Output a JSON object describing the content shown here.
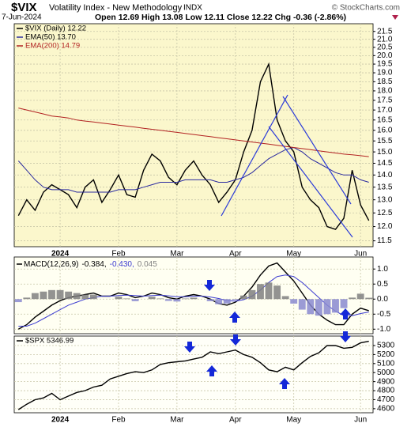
{
  "header": {
    "symbol": "$VIX",
    "name": "Volatility Index - New Methodology",
    "exchange": "INDX",
    "source": "© StockCharts.com",
    "date": "7-Jun-2024",
    "quote": "Open 12.69 High 13.08 Low 12.11 Close 12.22 Chg -0.36 (-2.86%)"
  },
  "chart_data": [
    {
      "type": "line",
      "log": true,
      "grid": true,
      "categories": [
        null,
        null,
        null,
        null,
        null,
        "2024",
        null,
        null,
        null,
        null,
        null,
        null,
        "Feb",
        null,
        null,
        null,
        null,
        null,
        null,
        "Mar",
        null,
        null,
        null,
        null,
        null,
        null,
        "Apr",
        null,
        null,
        null,
        null,
        null,
        null,
        "May",
        null,
        null,
        null,
        null,
        null,
        null,
        null,
        "Jun",
        null
      ],
      "series": [
        {
          "name": "$VIX (Daily) 12.22",
          "color": "#000000",
          "values": [
            12.4,
            13.0,
            12.6,
            13.3,
            13.6,
            13.4,
            13.2,
            12.7,
            13.5,
            13.8,
            12.9,
            13.4,
            14.0,
            13.2,
            13.1,
            14.2,
            14.9,
            14.6,
            13.9,
            13.6,
            14.2,
            14.6,
            14.0,
            13.6,
            12.9,
            13.3,
            13.8,
            15.0,
            16.0,
            18.5,
            19.5,
            16.5,
            15.5,
            15.0,
            13.5,
            13.0,
            12.7,
            12.0,
            11.9,
            12.3,
            14.2,
            12.8,
            12.22
          ]
        },
        {
          "name": "EMA(50) 13.70",
          "color": "#2a2aa0",
          "values": [
            14.6,
            14.2,
            13.8,
            13.5,
            13.4,
            13.4,
            13.4,
            13.3,
            13.3,
            13.3,
            13.3,
            13.3,
            13.4,
            13.4,
            13.4,
            13.5,
            13.6,
            13.7,
            13.7,
            13.7,
            13.8,
            13.8,
            13.8,
            13.8,
            13.7,
            13.7,
            13.8,
            13.9,
            14.1,
            14.4,
            14.7,
            14.9,
            15.1,
            15.2,
            15.0,
            14.7,
            14.5,
            14.3,
            14.1,
            14.0,
            14.0,
            13.8,
            13.7
          ]
        },
        {
          "name": "EMA(200) 14.79",
          "color": "#b22222",
          "values": [
            17.1,
            17.0,
            16.9,
            16.8,
            16.7,
            16.65,
            16.6,
            16.5,
            16.45,
            16.4,
            16.35,
            16.3,
            16.25,
            16.2,
            16.15,
            16.1,
            16.05,
            16.0,
            15.95,
            15.9,
            15.85,
            15.8,
            15.75,
            15.7,
            15.65,
            15.6,
            15.55,
            15.5,
            15.45,
            15.4,
            15.35,
            15.3,
            15.25,
            15.2,
            15.15,
            15.1,
            15.05,
            15.0,
            14.95,
            14.9,
            14.87,
            14.83,
            14.79
          ]
        }
      ],
      "ylim": [
        11.3,
        22.0
      ],
      "yticks": [
        21.5,
        {
          "value": 21,
          "label": "21.0"
        },
        20.5,
        {
          "value": 20,
          "label": "20.0"
        },
        19.5,
        {
          "value": 19,
          "label": "19.0"
        },
        18.5,
        {
          "value": 18,
          "label": "18.0"
        },
        17.5,
        {
          "value": 17,
          "label": "17.0"
        },
        16.5,
        {
          "value": 16,
          "label": "16.0"
        },
        15.5,
        {
          "value": 15,
          "label": "15.0"
        },
        14.5,
        {
          "value": 14,
          "label": "14.0"
        },
        13.5,
        {
          "value": 13,
          "label": "13.0"
        },
        12.5,
        {
          "value": 12,
          "label": "12.0"
        },
        11.5
      ]
    },
    {
      "type": "line",
      "grid": true,
      "label": "MACD(12,26,9)",
      "series": [
        {
          "name": "-0.384,",
          "color": "#000000",
          "values": [
            -1.0,
            -0.85,
            -0.6,
            -0.4,
            -0.2,
            -0.05,
            0.05,
            0.1,
            0.15,
            0.2,
            0.1,
            0.1,
            0.2,
            0.15,
            0.05,
            0.1,
            0.2,
            0.15,
            0.05,
            0.0,
            0.1,
            0.15,
            0.1,
            0.0,
            -0.15,
            -0.2,
            -0.1,
            0.1,
            0.4,
            0.8,
            1.1,
            1.2,
            0.9,
            0.6,
            0.2,
            -0.2,
            -0.5,
            -0.7,
            -0.85,
            -0.85,
            -0.5,
            -0.3,
            -0.384
          ]
        },
        {
          "name": "-0.430,",
          "color": "#3b3bd0",
          "values": [
            -0.9,
            -0.9,
            -0.8,
            -0.65,
            -0.5,
            -0.35,
            -0.2,
            -0.1,
            0.0,
            0.05,
            0.1,
            0.1,
            0.12,
            0.13,
            0.12,
            0.1,
            0.12,
            0.13,
            0.11,
            0.08,
            0.08,
            0.1,
            0.1,
            0.07,
            0.02,
            -0.05,
            -0.07,
            -0.02,
            0.1,
            0.3,
            0.55,
            0.75,
            0.8,
            0.75,
            0.55,
            0.3,
            0.05,
            -0.2,
            -0.4,
            -0.55,
            -0.55,
            -0.48,
            -0.43
          ]
        },
        {
          "name": "0.045",
          "color": "#808080",
          "type": "bar",
          "values": [
            -0.1,
            0.05,
            0.2,
            0.25,
            0.3,
            0.3,
            0.25,
            0.2,
            0.15,
            0.15,
            0.0,
            0.0,
            0.08,
            0.02,
            -0.07,
            0.0,
            0.08,
            0.02,
            -0.06,
            -0.08,
            0.02,
            0.05,
            0.0,
            -0.07,
            -0.17,
            -0.15,
            -0.03,
            0.12,
            0.3,
            0.5,
            0.55,
            0.45,
            0.1,
            -0.15,
            -0.35,
            -0.5,
            -0.55,
            -0.5,
            -0.45,
            -0.3,
            0.05,
            0.18,
            0.045
          ]
        }
      ],
      "ylim": [
        -1.15,
        1.4
      ],
      "yticks": [
        {
          "value": 1,
          "label": "1.0"
        },
        0.5,
        {
          "value": 0,
          "label": "0.0"
        },
        -0.5,
        {
          "value": -1,
          "label": "-1.0"
        }
      ]
    },
    {
      "type": "line",
      "grid": true,
      "categories": [
        null,
        null,
        null,
        null,
        null,
        "2024",
        null,
        null,
        null,
        null,
        null,
        null,
        "Feb",
        null,
        null,
        null,
        null,
        null,
        null,
        "Mar",
        null,
        null,
        null,
        null,
        null,
        null,
        "Apr",
        null,
        null,
        null,
        null,
        null,
        null,
        "May",
        null,
        null,
        null,
        null,
        null,
        null,
        null,
        "Jun",
        null
      ],
      "series": [
        {
          "name": "$SPX 5346.99",
          "color": "#000000",
          "values": [
            4590,
            4650,
            4700,
            4720,
            4770,
            4700,
            4740,
            4780,
            4800,
            4840,
            4860,
            4930,
            4960,
            4990,
            5010,
            5000,
            5030,
            5090,
            5110,
            5120,
            5130,
            5150,
            5170,
            5230,
            5210,
            5230,
            5250,
            5200,
            5170,
            5110,
            5030,
            5010,
            5060,
            5030,
            5110,
            5180,
            5220,
            5300,
            5300,
            5270,
            5280,
            5330,
            5346.99
          ]
        }
      ],
      "ylim": [
        4555,
        5405
      ],
      "yticks": [
        5300,
        5200,
        5100,
        5000,
        4900,
        4800,
        4700,
        4600
      ]
    }
  ]
}
